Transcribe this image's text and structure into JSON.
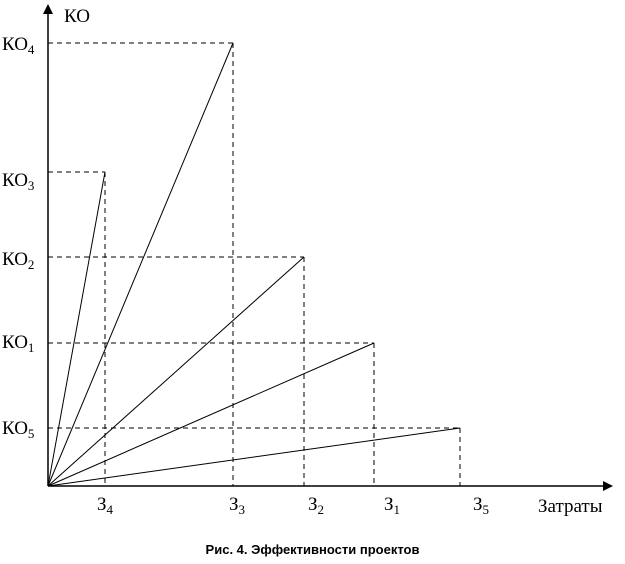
{
  "axes": {
    "y_label": "КО",
    "x_label": "Затраты"
  },
  "caption": "Рис. 4. Эффективности проектов",
  "projects": [
    {
      "id": "1",
      "cost": {
        "base": "З",
        "sub": "1"
      },
      "effect": {
        "base": "КО",
        "sub": "1"
      }
    },
    {
      "id": "2",
      "cost": {
        "base": "З",
        "sub": "2"
      },
      "effect": {
        "base": "КО",
        "sub": "2"
      }
    },
    {
      "id": "3",
      "cost": {
        "base": "З",
        "sub": "3"
      },
      "effect": {
        "base": "КО",
        "sub": "3"
      }
    },
    {
      "id": "4",
      "cost": {
        "base": "З",
        "sub": "4"
      },
      "effect": {
        "base": "КО",
        "sub": "4"
      }
    },
    {
      "id": "5",
      "cost": {
        "base": "З",
        "sub": "5"
      },
      "effect": {
        "base": "КО",
        "sub": "5"
      }
    }
  ]
}
